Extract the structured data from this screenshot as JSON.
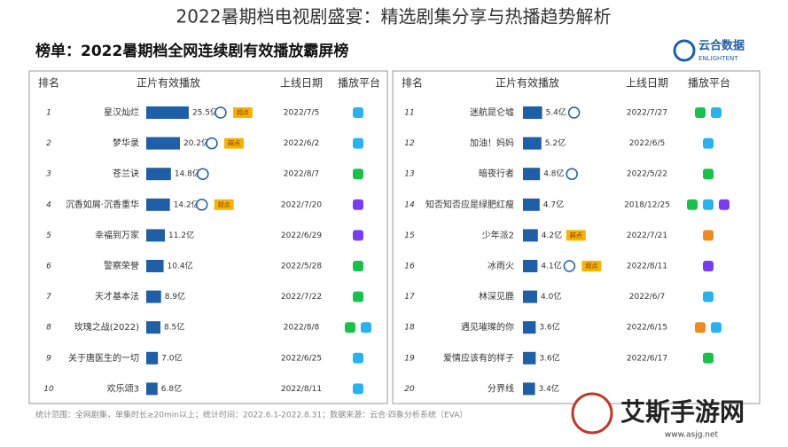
{
  "header": {
    "title": "2022暑期档电视剧盛宴：精选剧集分享与热播趋势解析",
    "subtitle": "榜单：2022暑期档全网连续剧有效播放霸屏榜",
    "logo": "云合数据",
    "logo_sub": "ENLIGHTENT"
  },
  "table": {
    "columns": [
      "排名",
      "正片有效播放",
      "上线日期",
      "播放平台"
    ],
    "bar_color": "#1f5fa8",
    "rows": [
      {
        "rank": 1,
        "name": "星汉灿烂",
        "value": 25.5,
        "value_label": "25.5亿",
        "round_icon": true,
        "badge": "超点",
        "date": "2022/7/5",
        "platform_colors": [
          "#27b3f0"
        ]
      },
      {
        "rank": 2,
        "name": "梦华录",
        "value": 20.2,
        "value_label": "20.2亿",
        "round_icon": true,
        "badge": "超点",
        "date": "2022/6/2",
        "platform_colors": [
          "#27b3f0"
        ]
      },
      {
        "rank": 3,
        "name": "苍兰诀",
        "value": 14.8,
        "value_label": "14.8亿",
        "round_icon": true,
        "date": "2022/8/7",
        "platform_colors": [
          "#18c24a"
        ]
      },
      {
        "rank": 4,
        "name": "沉香如屑·沉香重华",
        "value": 14.2,
        "value_label": "14.2亿",
        "round_icon": true,
        "badge": "超点",
        "date": "2022/7/20",
        "platform_colors": [
          "#7a3cf0"
        ]
      },
      {
        "rank": 5,
        "name": "幸福到万家",
        "value": 11.2,
        "value_label": "11.2亿",
        "round_icon": false,
        "date": "2022/6/29",
        "platform_colors": [
          "#7a3cf0"
        ]
      },
      {
        "rank": 6,
        "name": "警察荣誉",
        "value": 10.4,
        "value_label": "10.4亿",
        "round_icon": false,
        "date": "2022/5/28",
        "platform_colors": [
          "#18c24a"
        ]
      },
      {
        "rank": 7,
        "name": "天才基本法",
        "value": 8.9,
        "value_label": "8.9亿",
        "round_icon": false,
        "date": "2022/7/22",
        "platform_colors": [
          "#18c24a"
        ]
      },
      {
        "rank": 8,
        "name": "玫瑰之战(2022)",
        "value": 8.5,
        "value_label": "8.5亿",
        "round_icon": false,
        "date": "2022/8/8",
        "platform_colors": [
          "#18c24a",
          "#27b3f0"
        ]
      },
      {
        "rank": 9,
        "name": "关于唐医生的一切",
        "value": 7.0,
        "value_label": "7.0亿",
        "round_icon": false,
        "date": "2022/6/25",
        "platform_colors": [
          "#27b3f0"
        ]
      },
      {
        "rank": 10,
        "name": "欢乐颂3",
        "value": 6.8,
        "value_label": "6.8亿",
        "round_icon": false,
        "date": "2022/8/11",
        "platform_colors": [
          "#27b3f0"
        ]
      },
      {
        "rank": 11,
        "name": "迷航昆仑墟",
        "value": 5.4,
        "value_label": "5.4亿",
        "round_icon": true,
        "date": "2022/7/27",
        "platform_colors": [
          "#18c24a",
          "#27b3f0"
        ]
      },
      {
        "rank": 12,
        "name": "加油！妈妈",
        "value": 5.2,
        "value_label": "5.2亿",
        "round_icon": false,
        "date": "2022/6/5",
        "platform_colors": [
          "#27b3f0"
        ]
      },
      {
        "rank": 13,
        "name": "暗夜行者",
        "value": 4.8,
        "value_label": "4.8亿",
        "round_icon": true,
        "date": "2022/5/22",
        "platform_colors": [
          "#18c24a"
        ]
      },
      {
        "rank": 14,
        "name": "知否知否应是绿肥红瘦",
        "value": 4.7,
        "value_label": "4.7亿",
        "round_icon": false,
        "date": "2018/12/25",
        "platform_colors": [
          "#18c24a",
          "#27b3f0",
          "#7a3cf0"
        ]
      },
      {
        "rank": 15,
        "name": "少年派2",
        "value": 4.2,
        "value_label": "4.2亿",
        "round_icon": false,
        "badge": "超点",
        "date": "2022/7/21",
        "platform_colors": [
          "#f08a1e"
        ]
      },
      {
        "rank": 16,
        "name": "冰雨火",
        "value": 4.1,
        "value_label": "4.1亿",
        "round_icon": true,
        "badge": "超点",
        "date": "2022/8/11",
        "platform_colors": [
          "#7a3cf0"
        ]
      },
      {
        "rank": 17,
        "name": "林深见鹿",
        "value": 4.0,
        "value_label": "4.0亿",
        "round_icon": false,
        "date": "2022/6/7",
        "platform_colors": [
          "#27b3f0"
        ]
      },
      {
        "rank": 18,
        "name": "遇见璀璨的你",
        "value": 3.6,
        "value_label": "3.6亿",
        "round_icon": false,
        "date": "2022/6/15",
        "platform_colors": [
          "#f08a1e",
          "#27b3f0"
        ]
      },
      {
        "rank": 19,
        "name": "爱情应该有的样子",
        "value": 3.6,
        "value_label": "3.6亿",
        "round_icon": false,
        "date": "2022/6/17",
        "platform_colors": [
          "#18c24a"
        ]
      },
      {
        "rank": 20,
        "name": "分界线",
        "value": 3.4,
        "value_label": "3.4亿",
        "round_icon": false,
        "date": null,
        "platform_colors": []
      }
    ]
  },
  "footer": "统计范围：全网剧集，单集时长≥20min以上；统计时间：2022.6.1-2022.8.31；数据来源：云合·四象分析系统（EVA）",
  "watermark": {
    "title": "艾斯手游网",
    "url": "www.asjg.net"
  }
}
